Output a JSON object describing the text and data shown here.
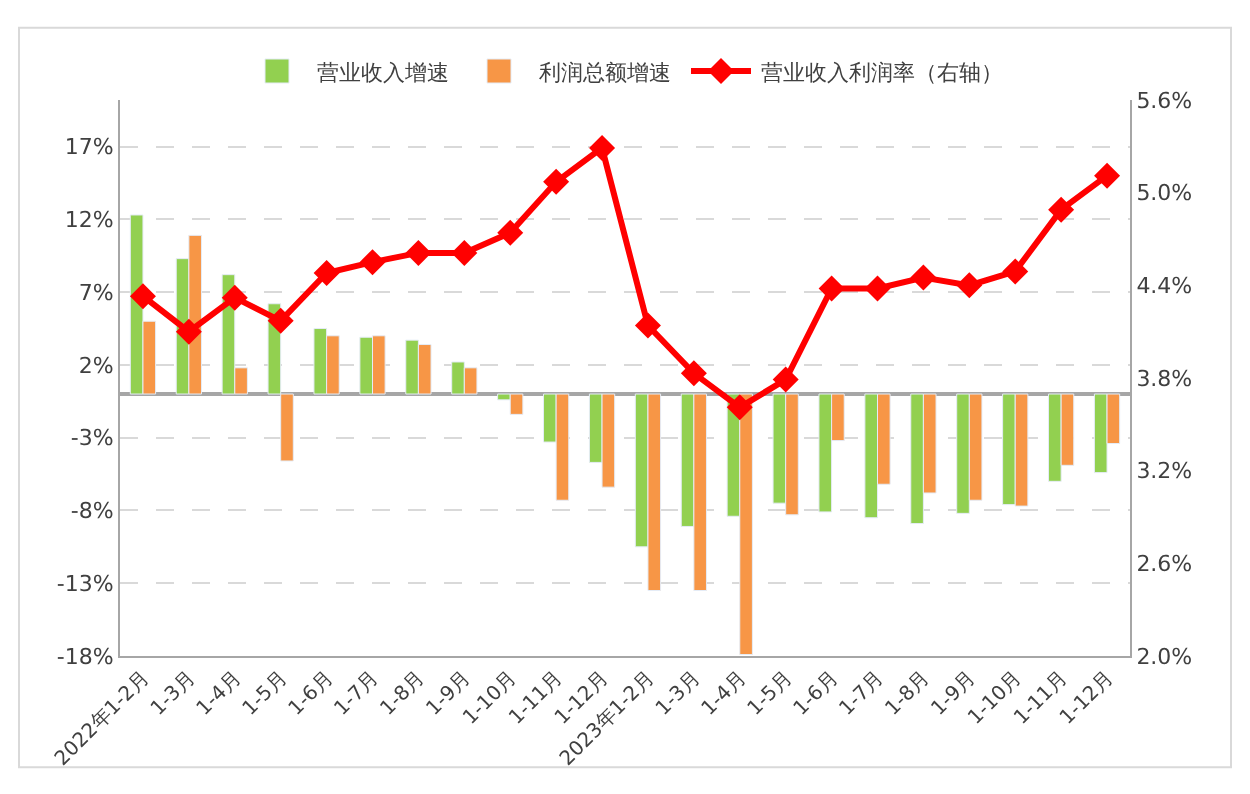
{
  "chart_data": {
    "type": "bar",
    "categories": [
      "2022年1-2月",
      "1-3月",
      "1-4月",
      "1-5月",
      "1-6月",
      "1-7月",
      "1-8月",
      "1-9月",
      "1-10月",
      "1-11月",
      "1-12月",
      "2023年1-2月",
      "1-3月",
      "1-4月",
      "1-5月",
      "1-6月",
      "1-7月",
      "1-8月",
      "1-9月",
      "1-10月",
      "1-11月",
      "1-12月"
    ],
    "series": [
      {
        "name": "营业收入增速",
        "color": "#92d050",
        "values": [
          12.3,
          9.3,
          8.2,
          6.2,
          4.5,
          3.9,
          3.7,
          2.2,
          -0.4,
          -3.3,
          -4.7,
          -10.5,
          -9.1,
          -8.4,
          -7.5,
          -8.1,
          -8.5,
          -8.9,
          -8.2,
          -7.6,
          -6.0,
          -5.4
        ]
      },
      {
        "name": "利润总额增速",
        "color": "#f79646",
        "values": [
          5.0,
          10.9,
          1.8,
          -4.6,
          4.0,
          4.0,
          3.4,
          1.8,
          -1.4,
          -7.3,
          -6.4,
          -13.5,
          -13.5,
          -17.9,
          -8.3,
          -3.2,
          -6.2,
          -6.8,
          -7.3,
          -7.7,
          -4.9,
          -3.4
        ]
      },
      {
        "name": "营业收入利润率（右轴）",
        "type": "line",
        "axis": "y2",
        "color": "#ff0000",
        "values": [
          4.33,
          4.1,
          4.32,
          4.17,
          4.48,
          4.55,
          4.61,
          4.61,
          4.74,
          5.07,
          5.29,
          4.14,
          3.83,
          3.61,
          3.79,
          4.38,
          4.38,
          4.45,
          4.4,
          4.49,
          4.89,
          5.11
        ]
      }
    ],
    "marker": "diamond",
    "ylim": [
      -18,
      20.2
    ],
    "yticks": [
      {
        "value": -18,
        "label": "-18%"
      },
      {
        "value": -13,
        "label": "-13%"
      },
      {
        "value": -8,
        "label": "-8%"
      },
      {
        "value": -3,
        "label": "-3%"
      },
      {
        "value": 2,
        "label": "2%"
      },
      {
        "value": 7,
        "label": "7%"
      },
      {
        "value": 12,
        "label": "12%"
      },
      {
        "value": 17,
        "label": "17%"
      }
    ],
    "y2lim": [
      2.0,
      5.6
    ],
    "y2ticks": [
      {
        "value": 2.0,
        "label": "2.0%"
      },
      {
        "value": 2.6,
        "label": "2.6%"
      },
      {
        "value": 3.2,
        "label": "3.2%"
      },
      {
        "value": 3.8,
        "label": "3.8%"
      },
      {
        "value": 4.4,
        "label": "4.4%"
      },
      {
        "value": 5.0,
        "label": "5.0%"
      },
      {
        "value": 5.6,
        "label": "5.6%"
      }
    ],
    "grid": "y",
    "legend": "top"
  }
}
